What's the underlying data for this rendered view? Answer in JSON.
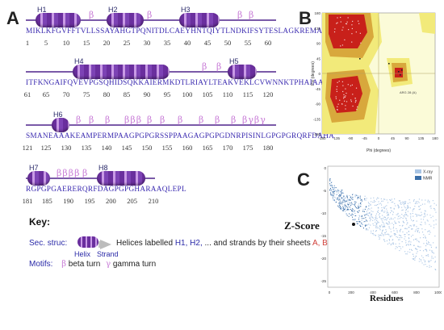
{
  "panel_labels": {
    "a": "A",
    "b": "B",
    "c": "C"
  },
  "panelA": {
    "rows": [
      {
        "helices": [
          {
            "label": "H1",
            "x": 12,
            "w": 56
          },
          {
            "label": "H2",
            "x": 100,
            "w": 46
          },
          {
            "label": "H3",
            "x": 190,
            "w": 50
          }
        ],
        "turns": [
          {
            "text": "β",
            "x": 78
          },
          {
            "text": "β",
            "x": 150
          },
          {
            "text": "β",
            "x": 262
          },
          {
            "text": "β",
            "x": 276
          }
        ],
        "sequence": "MIKLKFGVFFTVLLSSAYAHGTPQNITDLCAEYHNTQIYTLNDKIFSYTESLAGKREMAI",
        "numbers": [
          "1",
          "5",
          "10",
          "15",
          "20",
          "25",
          "30",
          "35",
          "40",
          "45",
          "50",
          "55",
          "60"
        ]
      },
      {
        "helices": [
          {
            "label": "H4",
            "x": 58,
            "w": 120
          },
          {
            "label": "H5",
            "x": 250,
            "w": 36
          }
        ],
        "turns": [
          {
            "text": "β",
            "x": 218
          },
          {
            "text": "β",
            "x": 236
          }
        ],
        "sequence": "ITFKNGAIFQVEVPGSQHIDSQKKAIERMKDTLRIAYLTEAKVEKLCVWNNKTPHAIAAI",
        "numbers": [
          "61",
          "65",
          "70",
          "75",
          "80",
          "85",
          "90",
          "95",
          "100",
          "105",
          "110",
          "115",
          "120"
        ]
      },
      {
        "helices": [
          {
            "label": "H6",
            "x": 32,
            "w": 22
          }
        ],
        "turns": [
          {
            "text": "β",
            "x": 62
          },
          {
            "text": "β",
            "x": 78
          },
          {
            "text": "β",
            "x": 98
          },
          {
            "text": "βββ",
            "x": 122
          },
          {
            "text": "β",
            "x": 150
          },
          {
            "text": "β",
            "x": 166
          },
          {
            "text": "β",
            "x": 188
          },
          {
            "text": "β",
            "x": 214
          },
          {
            "text": "β",
            "x": 234
          },
          {
            "text": "β",
            "x": 254
          },
          {
            "text": "βγβγ",
            "x": 268
          }
        ],
        "sequence": "SMANEAAAKEAMPERMPAAGPGPGRSSPPAAGAGPGPGDNRPISINLGPGPGRQRFDAHA",
        "numbers": [
          "121",
          "125",
          "130",
          "135",
          "140",
          "145",
          "150",
          "155",
          "160",
          "165",
          "170",
          "175",
          "180"
        ]
      },
      {
        "helices": [
          {
            "label": "H7",
            "x": 2,
            "w": 28
          },
          {
            "label": "H8",
            "x": 88,
            "w": 60
          }
        ],
        "turns": [
          {
            "text": "ββββ",
            "x": 38
          },
          {
            "text": "β",
            "x": 70
          }
        ],
        "sequence": "RGPGPGAERERQRFDAGPGPGHARAAQLEPL",
        "numbers": [
          "181",
          "185",
          "190",
          "195",
          "200",
          "205",
          "210"
        ]
      }
    ],
    "key": {
      "title": "Key:",
      "sec_struc_label": "Sec. struc:",
      "helix_word": "Helix",
      "strand_word": "Strand",
      "description_prefix": "Helices labelled",
      "description_helices": "H1, H2,",
      "description_mid": "... and strands by their sheets",
      "description_sheets": "A, B,",
      "description_end": "...",
      "motifs_label": "Motifs:",
      "beta_symbol": "β",
      "beta_text": "beta turn",
      "gamma_symbol": "γ",
      "gamma_text": "gamma turn"
    },
    "colors": {
      "helix": "#7d43b5",
      "turn": "#c77ad6",
      "sequence": "#3a2ab0",
      "line": "#7a5aa8"
    }
  },
  "panelB": {
    "x_label": "Phi (degrees)",
    "y_label": "Psi (degrees)",
    "x_ticks": [
      "-180",
      "-135",
      "-90",
      "-45",
      "0",
      "45",
      "90",
      "135",
      "180"
    ],
    "y_ticks": [
      "180",
      "135",
      "90",
      "45",
      "0",
      "-45",
      "-90",
      "-135",
      "-180"
    ],
    "annotation": "ARG 28 (A)",
    "colors": {
      "core": "#c8201a",
      "allowed": "#d8a83c",
      "generous": "#f2ea7a",
      "disallowed": "#fbfbd8"
    }
  },
  "panelC": {
    "side_label": "Z-Score",
    "bottom_label": "Residues",
    "legend": [
      {
        "name": "X-ray",
        "color": "#a8c4e4"
      },
      {
        "name": "NMR",
        "color": "#3a6ea8"
      }
    ],
    "y_ticks": [
      "0",
      "-5",
      "-10",
      "-15",
      "-20",
      "-25"
    ],
    "x_ticks": [
      "0",
      "200",
      "400",
      "600",
      "800",
      "1000"
    ]
  }
}
